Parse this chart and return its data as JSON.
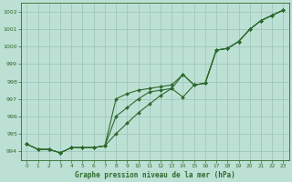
{
  "xlabel": "Graphe pression niveau de la mer (hPa)",
  "xlim": [
    -0.5,
    23.5
  ],
  "ylim": [
    993.5,
    1002.5
  ],
  "yticks": [
    994,
    995,
    996,
    997,
    998,
    999,
    1000,
    1001,
    1002
  ],
  "xticks": [
    0,
    1,
    2,
    3,
    4,
    5,
    6,
    7,
    8,
    9,
    10,
    11,
    12,
    13,
    14,
    15,
    16,
    17,
    18,
    19,
    20,
    21,
    22,
    23
  ],
  "bg_color": "#bde0d4",
  "grid_color": "#99c4b8",
  "line_color": "#2d6a2d",
  "line1": [
    994.4,
    994.1,
    994.1,
    993.9,
    994.2,
    994.2,
    994.2,
    994.3,
    997.0,
    997.3,
    997.5,
    997.6,
    997.7,
    997.8,
    998.4,
    997.8,
    997.9,
    999.8,
    999.9,
    1000.3,
    1001.0,
    1001.5,
    1001.8,
    1002.1
  ],
  "line2": [
    994.4,
    994.1,
    994.1,
    993.9,
    994.2,
    994.2,
    994.2,
    994.3,
    996.0,
    996.5,
    997.0,
    997.4,
    997.5,
    997.6,
    998.4,
    997.8,
    997.9,
    999.8,
    999.9,
    1000.3,
    1001.0,
    1001.5,
    1001.8,
    1002.1
  ],
  "line3": [
    994.4,
    994.1,
    994.1,
    993.9,
    994.2,
    994.2,
    994.2,
    994.3,
    995.0,
    995.6,
    996.2,
    996.7,
    997.2,
    997.6,
    997.1,
    997.8,
    997.9,
    999.8,
    999.9,
    1000.3,
    1001.0,
    1001.5,
    1001.8,
    1002.1
  ]
}
